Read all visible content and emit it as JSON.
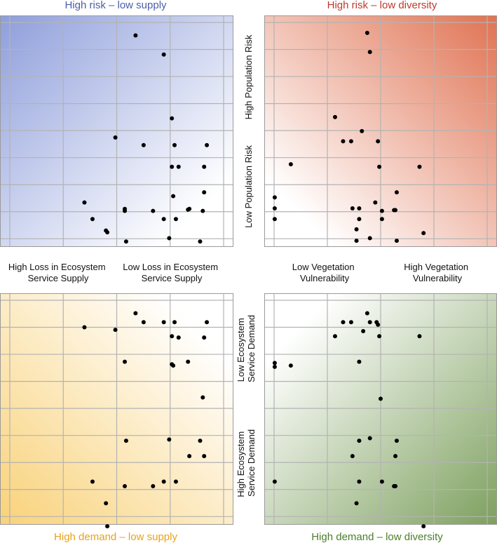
{
  "panels": [
    {
      "id": "top-left",
      "title": "High risk – low supply",
      "title_color": "#4a5fa8",
      "gradient": {
        "type": "diag-tl",
        "strong": "#8e9edb",
        "light": "#ffffff"
      }
    },
    {
      "id": "top-right",
      "title": "High risk – low diversity",
      "title_color": "#c0392b",
      "gradient": {
        "type": "diag-tr",
        "strong": "#e07252",
        "light": "#ffffff"
      }
    },
    {
      "id": "bottom-left",
      "title": "High demand – low supply",
      "title_color": "#e8a317",
      "gradient": {
        "type": "diag-bl",
        "strong": "#f9d27a",
        "light": "#ffffff"
      }
    },
    {
      "id": "bottom-right",
      "title": "High demand – low diversity",
      "title_color": "#4a7f2a",
      "gradient": {
        "type": "diag-br",
        "strong": "#7da05e",
        "light": "#ffffff"
      }
    }
  ],
  "axis_labels": {
    "supply_low_end": [
      "High Loss in Ecosystem",
      "Service Supply"
    ],
    "supply_high_end": [
      "Low Loss in Ecosystem",
      "Service Supply"
    ],
    "veg_low_end": [
      "Low Vegetation",
      "Vulnerability"
    ],
    "veg_high_end": [
      "High Vegetation",
      "Vulnerability"
    ],
    "risk_high": "High Population Risk",
    "risk_low": "Low Population Risk",
    "demand_low": [
      "Low Ecosystem",
      "Service Demand"
    ],
    "demand_high": [
      "High Ecosystem",
      "Service Demand"
    ]
  },
  "chart_data": [
    {
      "type": "scatter",
      "panel": "top-left",
      "xlabel": "Loss in Ecosystem Service Supply",
      "ylabel": "Population Risk",
      "xlim": [
        0,
        8
      ],
      "ylim": [
        0,
        8.5
      ],
      "grid": true,
      "points": [
        [
          4.7,
          8.1
        ],
        [
          5.75,
          7.35
        ],
        [
          6.05,
          4.85
        ],
        [
          3.95,
          4.1
        ],
        [
          5.0,
          3.8
        ],
        [
          6.15,
          3.8
        ],
        [
          7.35,
          3.8
        ],
        [
          6.05,
          2.95
        ],
        [
          6.3,
          2.95
        ],
        [
          7.25,
          2.95
        ],
        [
          6.1,
          1.8
        ],
        [
          7.25,
          1.95
        ],
        [
          2.8,
          1.55
        ],
        [
          4.3,
          1.3
        ],
        [
          4.3,
          1.22
        ],
        [
          5.35,
          1.22
        ],
        [
          6.65,
          1.27
        ],
        [
          6.7,
          1.3
        ],
        [
          7.2,
          1.22
        ],
        [
          3.1,
          0.9
        ],
        [
          5.75,
          0.9
        ],
        [
          6.2,
          0.9
        ],
        [
          3.6,
          0.45
        ],
        [
          3.65,
          0.38
        ],
        [
          5.95,
          0.15
        ],
        [
          4.35,
          0.02
        ],
        [
          7.1,
          0.02
        ]
      ]
    },
    {
      "type": "scatter",
      "panel": "top-right",
      "xlabel": "Vegetation Vulnerability",
      "ylabel": "Population Risk",
      "xlim": [
        0,
        8
      ],
      "ylim": [
        0,
        8.5
      ],
      "grid": true,
      "points": [
        [
          3.5,
          8.2
        ],
        [
          3.6,
          7.45
        ],
        [
          2.3,
          4.9
        ],
        [
          3.3,
          4.35
        ],
        [
          2.6,
          3.95
        ],
        [
          2.9,
          3.95
        ],
        [
          3.9,
          3.95
        ],
        [
          0.65,
          3.05
        ],
        [
          3.95,
          2.95
        ],
        [
          5.45,
          2.95
        ],
        [
          4.6,
          1.95
        ],
        [
          0.05,
          1.75
        ],
        [
          3.8,
          1.55
        ],
        [
          0.05,
          1.32
        ],
        [
          2.95,
          1.32
        ],
        [
          3.2,
          1.32
        ],
        [
          4.05,
          1.22
        ],
        [
          4.5,
          1.25
        ],
        [
          4.55,
          1.25
        ],
        [
          0.05,
          0.9
        ],
        [
          3.2,
          0.9
        ],
        [
          4.05,
          0.9
        ],
        [
          3.1,
          0.5
        ],
        [
          3.6,
          0.15
        ],
        [
          3.1,
          0.05
        ],
        [
          4.6,
          0.05
        ],
        [
          5.6,
          0.35
        ]
      ]
    },
    {
      "type": "scatter",
      "panel": "bottom-left",
      "xlabel": "Loss in Ecosystem Service Supply",
      "ylabel": "Ecosystem Service Demand",
      "xlim": [
        0,
        8
      ],
      "ylim": [
        0,
        8.5
      ],
      "grid": true,
      "points": [
        [
          4.7,
          8.1
        ],
        [
          2.8,
          7.55
        ],
        [
          3.95,
          7.45
        ],
        [
          5.0,
          7.75
        ],
        [
          5.75,
          7.75
        ],
        [
          6.15,
          7.75
        ],
        [
          7.35,
          7.75
        ],
        [
          6.05,
          7.2
        ],
        [
          6.3,
          7.15
        ],
        [
          7.25,
          7.15
        ],
        [
          4.3,
          6.2
        ],
        [
          6.05,
          6.1
        ],
        [
          6.1,
          6.05
        ],
        [
          6.65,
          6.2
        ],
        [
          7.2,
          4.8
        ],
        [
          4.35,
          3.1
        ],
        [
          5.95,
          3.15
        ],
        [
          7.1,
          3.1
        ],
        [
          6.7,
          2.5
        ],
        [
          7.25,
          2.5
        ],
        [
          3.1,
          1.5
        ],
        [
          5.75,
          1.5
        ],
        [
          6.2,
          1.5
        ],
        [
          4.3,
          1.32
        ],
        [
          5.35,
          1.32
        ],
        [
          3.6,
          0.65
        ],
        [
          3.65,
          -0.25
        ]
      ]
    },
    {
      "type": "scatter",
      "panel": "bottom-right",
      "xlabel": "Vegetation Vulnerability",
      "ylabel": "Ecosystem Service Demand",
      "xlim": [
        0,
        8
      ],
      "ylim": [
        0,
        8.5
      ],
      "grid": true,
      "points": [
        [
          3.5,
          8.1
        ],
        [
          2.6,
          7.75
        ],
        [
          2.9,
          7.75
        ],
        [
          3.6,
          7.75
        ],
        [
          3.85,
          7.75
        ],
        [
          3.9,
          7.65
        ],
        [
          2.3,
          7.2
        ],
        [
          3.35,
          7.4
        ],
        [
          3.95,
          7.2
        ],
        [
          5.45,
          7.2
        ],
        [
          0.05,
          6.15
        ],
        [
          0.05,
          6.0
        ],
        [
          0.65,
          6.05
        ],
        [
          3.2,
          6.2
        ],
        [
          4.0,
          4.75
        ],
        [
          3.2,
          3.1
        ],
        [
          3.6,
          3.2
        ],
        [
          4.6,
          3.1
        ],
        [
          2.95,
          2.5
        ],
        [
          4.55,
          2.5
        ],
        [
          0.05,
          1.5
        ],
        [
          3.2,
          1.5
        ],
        [
          4.05,
          1.5
        ],
        [
          4.5,
          1.32
        ],
        [
          4.55,
          1.32
        ],
        [
          3.1,
          0.65
        ],
        [
          5.6,
          -0.25
        ]
      ]
    }
  ]
}
